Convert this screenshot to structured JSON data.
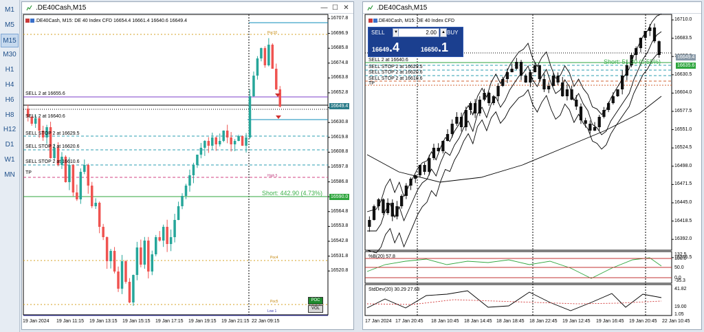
{
  "timeframes": [
    "M1",
    "M5",
    "M15",
    "M30",
    "H1",
    "H4",
    "H6",
    "H8",
    "H12",
    "D1",
    "W1",
    "MN"
  ],
  "timeframe_active": "M15",
  "left": {
    "title": ".DE40Cash,M15",
    "info": ".DE40Cash, M15: DE 40 Index CFD  16654.4 16661.4 16640.6 16649.4",
    "yticks": [
      "16707.8",
      "16696.9",
      "16685.8",
      "16674.8",
      "16663.8",
      "16652.8",
      "16641.8",
      "16630.8",
      "16619.8",
      "16608.8",
      "16597.8",
      "16586.8",
      "16575.8",
      "16564.8",
      "16553.8",
      "16542.8",
      "16531.8",
      "16520.8"
    ],
    "xticks": [
      "19 Jan 2024",
      "19 Jan 11:15",
      "19 Jan 13:15",
      "19 Jan 15:15",
      "19 Jan 17:15",
      "19 Jan 19:15",
      "19 Jan 21:15",
      "22 Jan 09:15"
    ],
    "price_label": "16649.4",
    "short_price": "16590.0",
    "lines": [
      "SELL 2 at 16655.6",
      "SELL 2 at 16640.6",
      "SELL STOP 2 at 16629.5",
      "SELL STOP 2 at 16620.6",
      "SELL STOP 2 at 16610.6",
      "TP"
    ],
    "short_text": "Short: 442.90  (4.73%)",
    "poc_btn": "POC",
    "vol_btn": "VOL",
    "small_labels": [
      "Poc4",
      "Poc5",
      "Low 1",
      "Poc10",
      "High 5"
    ]
  },
  "right": {
    "title": ".DE40Cash,M15",
    "info": ".DE40Cash, M15: DE 40 Index CFD",
    "sell_label": "SELL",
    "buy_label": "BUY",
    "lot": "2.00",
    "sell_small": "16649",
    "sell_big": ".4",
    "buy_small": "16650",
    "buy_big": ".1",
    "lines": [
      "SELL 2 at 16640.6",
      "SELL STOP 2 at 16629.5",
      "SELL STOP 2 at 16620.6",
      "SELL STOP 2 at 16610.6",
      "TP"
    ],
    "short_text": "Short: 51.30  (0.55%)",
    "yticks": [
      "16710.0",
      "16683.5",
      "16657.0",
      "16630.5",
      "16604.0",
      "16577.5",
      "16551.0",
      "16524.5",
      "16498.0",
      "16471.5",
      "16445.0",
      "16418.5",
      "16392.0",
      "16365.5"
    ],
    "price_label_1": "16649.4",
    "price_label_2": "16635.6",
    "pctb_label": "%B(20) 57.8",
    "pctb_ticks": [
      "132.5",
      "100.0",
      "50.0",
      "0.0",
      "-35.3"
    ],
    "std_label": "StdDev(20) 30.29 27.68",
    "std_ticks": [
      "41.82",
      "19.00",
      "1.05"
    ],
    "xticks": [
      "17 Jan 2024",
      "17 Jan 20:45",
      "18 Jan 10:45",
      "18 Jan 14:45",
      "18 Jan 18:45",
      "18 Jan 22:45",
      "19 Jan 12:45",
      "19 Jan 16:45",
      "19 Jan 20:45",
      "22 Jan 10:45"
    ]
  }
}
